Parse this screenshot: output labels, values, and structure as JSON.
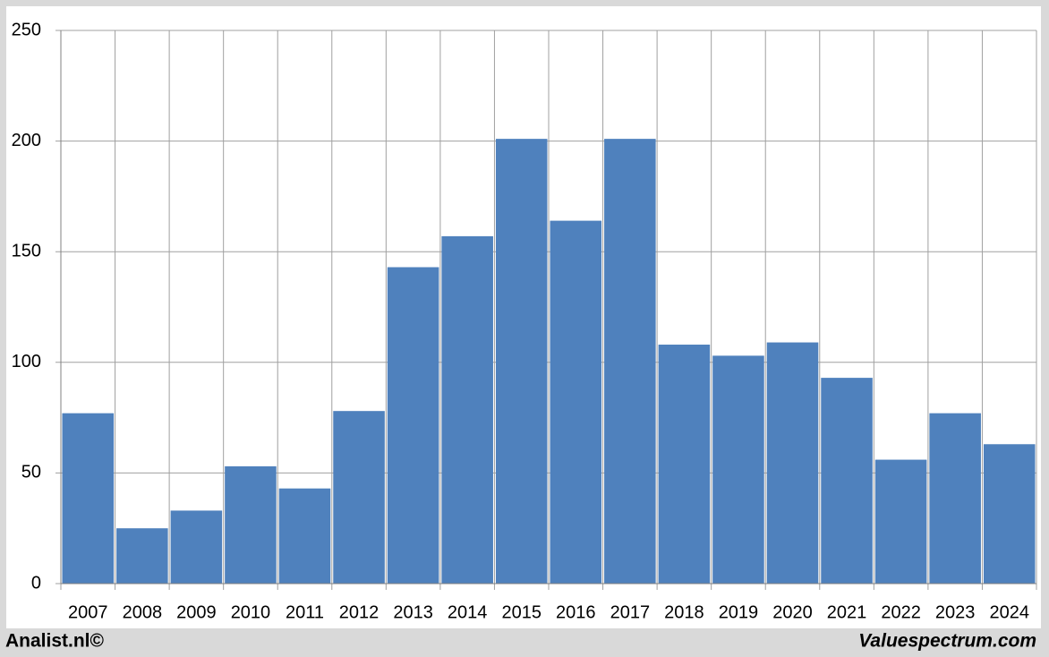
{
  "chart_data": {
    "type": "bar",
    "categories": [
      "2007",
      "2008",
      "2009",
      "2010",
      "2011",
      "2012",
      "2013",
      "2014",
      "2015",
      "2016",
      "2017",
      "2018",
      "2019",
      "2020",
      "2021",
      "2022",
      "2023",
      "2024"
    ],
    "values": [
      77,
      25,
      33,
      53,
      43,
      78,
      143,
      157,
      201,
      164,
      201,
      108,
      103,
      109,
      93,
      56,
      77,
      63
    ],
    "color": "#4f81bd",
    "ylim": [
      0,
      250
    ],
    "yticks": [
      0,
      50,
      100,
      150,
      200,
      250
    ],
    "grid": true,
    "credits": [
      "Analist.nl©",
      "Valuespectrum.com"
    ]
  }
}
